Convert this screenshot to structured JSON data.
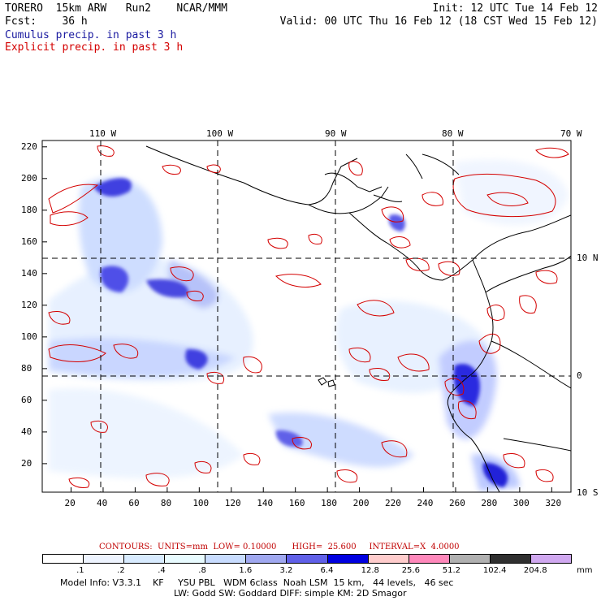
{
  "header": {
    "line1_left": "TORERO  15km ARW   Run2    NCAR/MMM",
    "line1_right": "Init: 12 UTC Tue 14 Feb 12",
    "line2_left": "Fcst:    36 h",
    "line2_right": "Valid: 00 UTC Thu 16 Feb 12 (18 CST Wed 15 Feb 12)",
    "legend_cumulus": "Cumulus precip. in past 3 h",
    "legend_explicit": "Explicit precip. in past 3 h",
    "cumulus_color": "#1a1aa0",
    "explicit_color": "#d40000"
  },
  "map": {
    "top_lon_labels": [
      "110 W",
      "100 W",
      "90 W",
      "80 W",
      "70 W"
    ],
    "right_lat_labels": [
      "10 N",
      "0",
      "10 S"
    ],
    "left_y_ticks": [
      "220",
      "200",
      "180",
      "160",
      "140",
      "120",
      "100",
      "80",
      "60",
      "40",
      "20"
    ],
    "bottom_x_ticks": [
      "20",
      "40",
      "60",
      "80",
      "100",
      "120",
      "140",
      "160",
      "180",
      "200",
      "220",
      "240",
      "260",
      "280",
      "300",
      "320"
    ]
  },
  "contour_info": {
    "text": "CONTOURS:  UNITS=mm  LOW= 0.10000      HIGH=  25.600     INTERVAL=X  4.0000"
  },
  "colorbar": {
    "labels": [
      ".1",
      ".2",
      ".4",
      ".8",
      "1.6",
      "3.2",
      "6.4",
      "12.8",
      "25.6",
      "51.2",
      "102.4",
      "204.8"
    ],
    "unit": "mm",
    "colors": [
      "#ffffff",
      "#eef4ff",
      "#d8ebff",
      "#e8fbff",
      "#c8dcff",
      "#a0a8f0",
      "#6060e8",
      "#0000e0",
      "#ffcccc",
      "#ff88bb",
      "#b0b0b0",
      "#303030",
      "#d0a8f0"
    ]
  },
  "model_info": {
    "line1": "Model Info: V3.3.1    KF     YSU PBL   WDM 6class  Noah LSM  15 km,   44 levels,   46 sec",
    "line2": "LW: Godd SW: Goddard DIFF: simple KM: 2D Smagor"
  }
}
